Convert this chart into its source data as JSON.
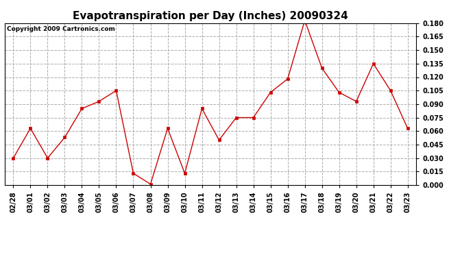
{
  "title": "Evapotranspiration per Day (Inches) 20090324",
  "copyright_text": "Copyright 2009 Cartronics.com",
  "x_labels": [
    "02/28",
    "03/01",
    "03/02",
    "03/03",
    "03/04",
    "03/05",
    "03/06",
    "03/07",
    "03/08",
    "03/09",
    "03/10",
    "03/11",
    "03/12",
    "03/13",
    "03/14",
    "03/15",
    "03/16",
    "03/17",
    "03/18",
    "03/19",
    "03/20",
    "03/21",
    "03/22",
    "03/23"
  ],
  "y_values": [
    0.03,
    0.063,
    0.03,
    0.053,
    0.085,
    0.093,
    0.105,
    0.013,
    0.001,
    0.063,
    0.013,
    0.085,
    0.05,
    0.075,
    0.075,
    0.103,
    0.118,
    0.183,
    0.13,
    0.103,
    0.093,
    0.135,
    0.105,
    0.063
  ],
  "line_color": "#cc0000",
  "marker": "s",
  "marker_size": 3,
  "marker_color": "#cc0000",
  "ylim": [
    0.0,
    0.18
  ],
  "yticks": [
    0.0,
    0.015,
    0.03,
    0.045,
    0.06,
    0.075,
    0.09,
    0.105,
    0.12,
    0.135,
    0.15,
    0.165,
    0.18
  ],
  "grid_color": "#aaaaaa",
  "grid_style": "--",
  "bg_color": "#ffffff",
  "plot_bg_color": "#ffffff",
  "title_fontsize": 11,
  "tick_fontsize": 7,
  "copyright_fontsize": 6.5
}
